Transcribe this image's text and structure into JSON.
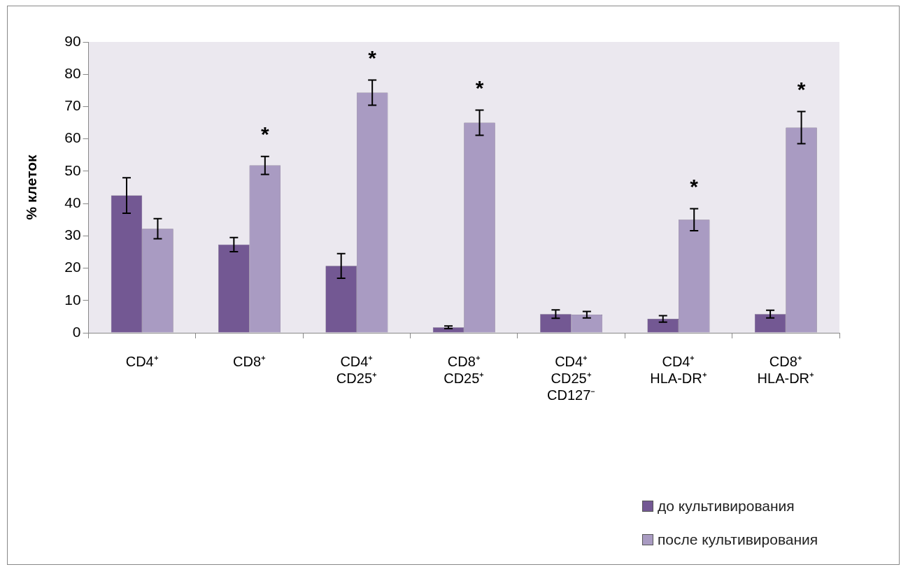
{
  "chart_data": {
    "type": "bar",
    "ylabel": "% клеток",
    "categories": [
      "CD4⁺",
      "CD8⁺",
      "CD4⁺\nCD25⁺",
      "CD8⁺\nCD25⁺",
      "CD4⁺\nCD25⁺\nCD127⁻",
      "CD4⁺\nHLA-DR⁺",
      "CD8⁺\nHLA-DR⁺"
    ],
    "series": [
      {
        "name": "до культивирования",
        "color": "#735893",
        "values": [
          42.5,
          27.3,
          20.7,
          1.7,
          5.8,
          4.3,
          5.8
        ],
        "errors": [
          5.5,
          2.2,
          3.8,
          0.4,
          1.3,
          1,
          1.2
        ]
      },
      {
        "name": "после культивирования",
        "color": "#a99bc2",
        "values": [
          32.2,
          51.8,
          74.3,
          65,
          5.6,
          35,
          63.5
        ],
        "errors": [
          3.1,
          2.8,
          3.9,
          3.9,
          1,
          3.4,
          5
        ]
      }
    ],
    "ylim": [
      0,
      90
    ],
    "yticks": [
      0,
      10,
      20,
      30,
      40,
      50,
      60,
      70,
      80,
      90
    ],
    "grid": false,
    "legend": "bottom right",
    "annotations": [
      {
        "text": "*",
        "x": "CD8⁺",
        "y": 51.8
      },
      {
        "text": "*",
        "x": "CD4⁺\nCD25⁺",
        "y": 74.3
      },
      {
        "text": "*",
        "x": "CD8⁺\nCD25⁺",
        "y": 65
      },
      {
        "text": "*",
        "x": "CD4⁺\nHLA-DR⁺",
        "y": 35
      },
      {
        "text": "*",
        "x": "CD8⁺\nHLA-DR⁺",
        "y": 63.5
      }
    ]
  }
}
